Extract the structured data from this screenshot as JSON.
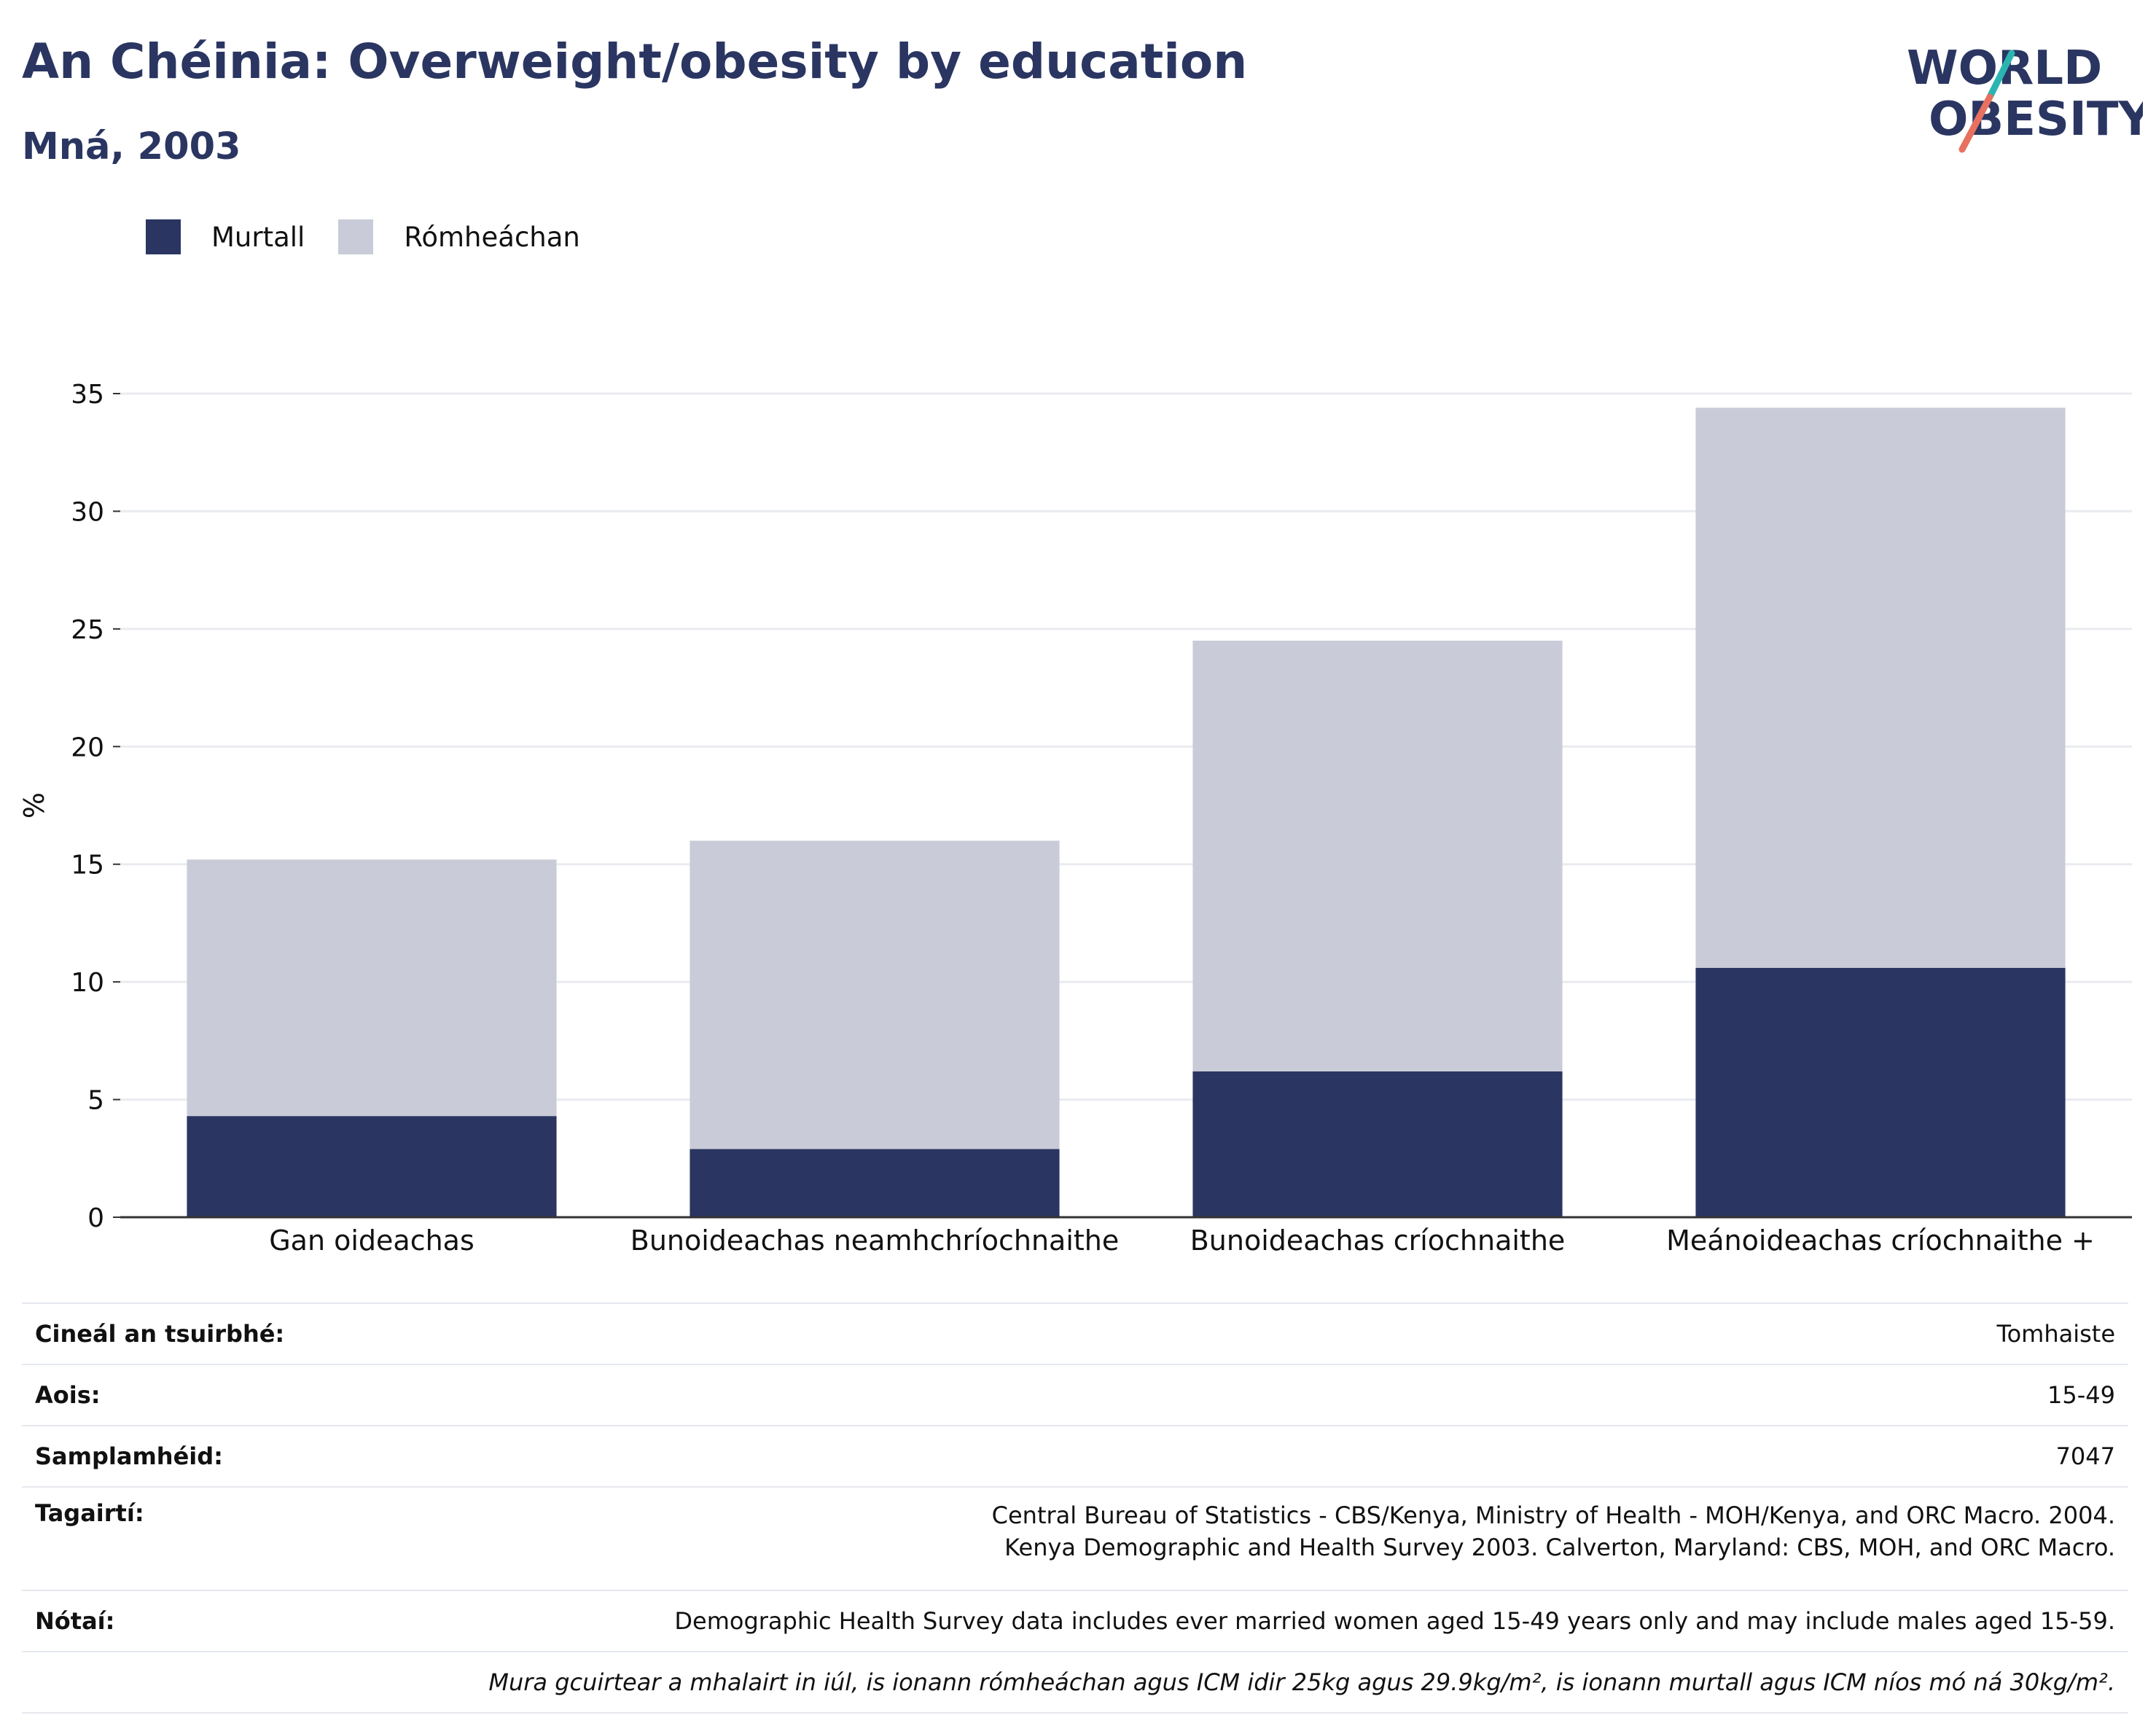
{
  "header": {
    "title": "An Chéinia: Overweight/obesity by education",
    "subtitle": "Mná, 2003"
  },
  "logo": {
    "line1": "WORLD",
    "line2": "OBESITY",
    "colors": {
      "text": "#2a3661",
      "slash_top": "#2bb5b1",
      "slash_bottom": "#e8705f"
    }
  },
  "legend": [
    {
      "label": "Murtall",
      "color": "#2a3661"
    },
    {
      "label": "Rómheáchan",
      "color": "#c9ccd8"
    }
  ],
  "chart_data": {
    "type": "bar",
    "stacked": true,
    "categories": [
      "Gan oideachas",
      "Bunoideachas neamhchríochnaithe",
      "Bunoideachas críochnaithe",
      "Meánoideachas críochnaithe +"
    ],
    "series": [
      {
        "name": "Murtall",
        "color": "#2a3661",
        "values": [
          4.3,
          2.9,
          6.2,
          10.6
        ]
      },
      {
        "name": "Rómheáchan",
        "color": "#c9ccd8",
        "values": [
          10.9,
          13.1,
          18.3,
          23.8
        ]
      }
    ],
    "ylabel": "%",
    "xlabel": "",
    "ylim": [
      0,
      35
    ],
    "yticks": [
      0,
      5,
      10,
      15,
      20,
      25,
      30,
      35
    ],
    "grid": true,
    "legend_position": "top-left"
  },
  "info": {
    "survey_type": {
      "label": "Cineál an tsuirbhé:",
      "value": "Tomhaiste"
    },
    "age": {
      "label": "Aois:",
      "value": "15-49"
    },
    "sample_size": {
      "label": "Samplamhéid:",
      "value": "7047"
    },
    "references": {
      "label": "Tagairtí:",
      "value": "Central Bureau of Statistics - CBS/Kenya, Ministry of Health - MOH/Kenya, and ORC Macro. 2004. Kenya Demographic and Health Survey 2003. Calverton, Maryland: CBS, MOH, and ORC Macro."
    },
    "notes": {
      "label": "Nótaí:",
      "value": "Demographic Health Survey data includes ever married women aged 15-49 years only and may include males aged 15-59."
    },
    "definition": {
      "value": "Mura gcuirtear a mhalairt in iúl, is ionann rómheáchan agus ICM idir 25kg agus 29.9kg/m², is ionann murtall agus ICM níos mó ná 30kg/m²."
    }
  }
}
